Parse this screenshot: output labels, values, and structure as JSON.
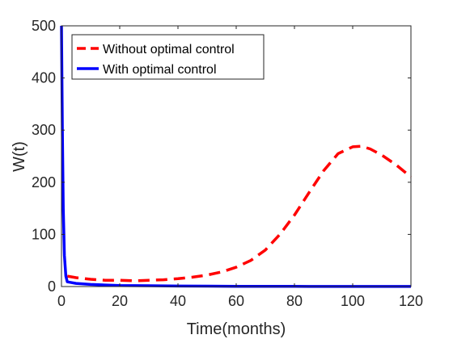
{
  "chart_data": {
    "type": "line",
    "xlabel": "Time(months)",
    "ylabel": "W(t)",
    "xlim": [
      0,
      120
    ],
    "ylim": [
      0,
      500
    ],
    "xticks": [
      0,
      20,
      40,
      60,
      80,
      100,
      120
    ],
    "yticks": [
      0,
      100,
      200,
      300,
      400,
      500
    ],
    "grid": false,
    "legend_position": "top-left",
    "series": [
      {
        "name": "Without optimal control",
        "color": "#ff0000",
        "style": "dashed",
        "x": [
          2,
          5,
          10,
          15,
          20,
          25,
          30,
          35,
          40,
          45,
          50,
          55,
          60,
          65,
          70,
          75,
          80,
          85,
          90,
          95,
          100,
          103,
          106,
          110,
          115,
          120
        ],
        "y": [
          20,
          17,
          14,
          12,
          12,
          11,
          12,
          13,
          15,
          18,
          22,
          28,
          37,
          50,
          70,
          100,
          137,
          180,
          222,
          255,
          268,
          269,
          264,
          252,
          233,
          210
        ]
      },
      {
        "name": "With optimal control",
        "color": "#0000ff",
        "style": "solid",
        "x": [
          0,
          0.3,
          0.6,
          1,
          1.5,
          2,
          3,
          5,
          10,
          15,
          20,
          30,
          40,
          50,
          60,
          80,
          100,
          120
        ],
        "y": [
          500,
          300,
          150,
          60,
          20,
          9,
          8,
          6,
          4,
          3,
          2,
          1.5,
          1,
          0.7,
          0.5,
          0.3,
          0.2,
          0.2
        ]
      }
    ]
  }
}
